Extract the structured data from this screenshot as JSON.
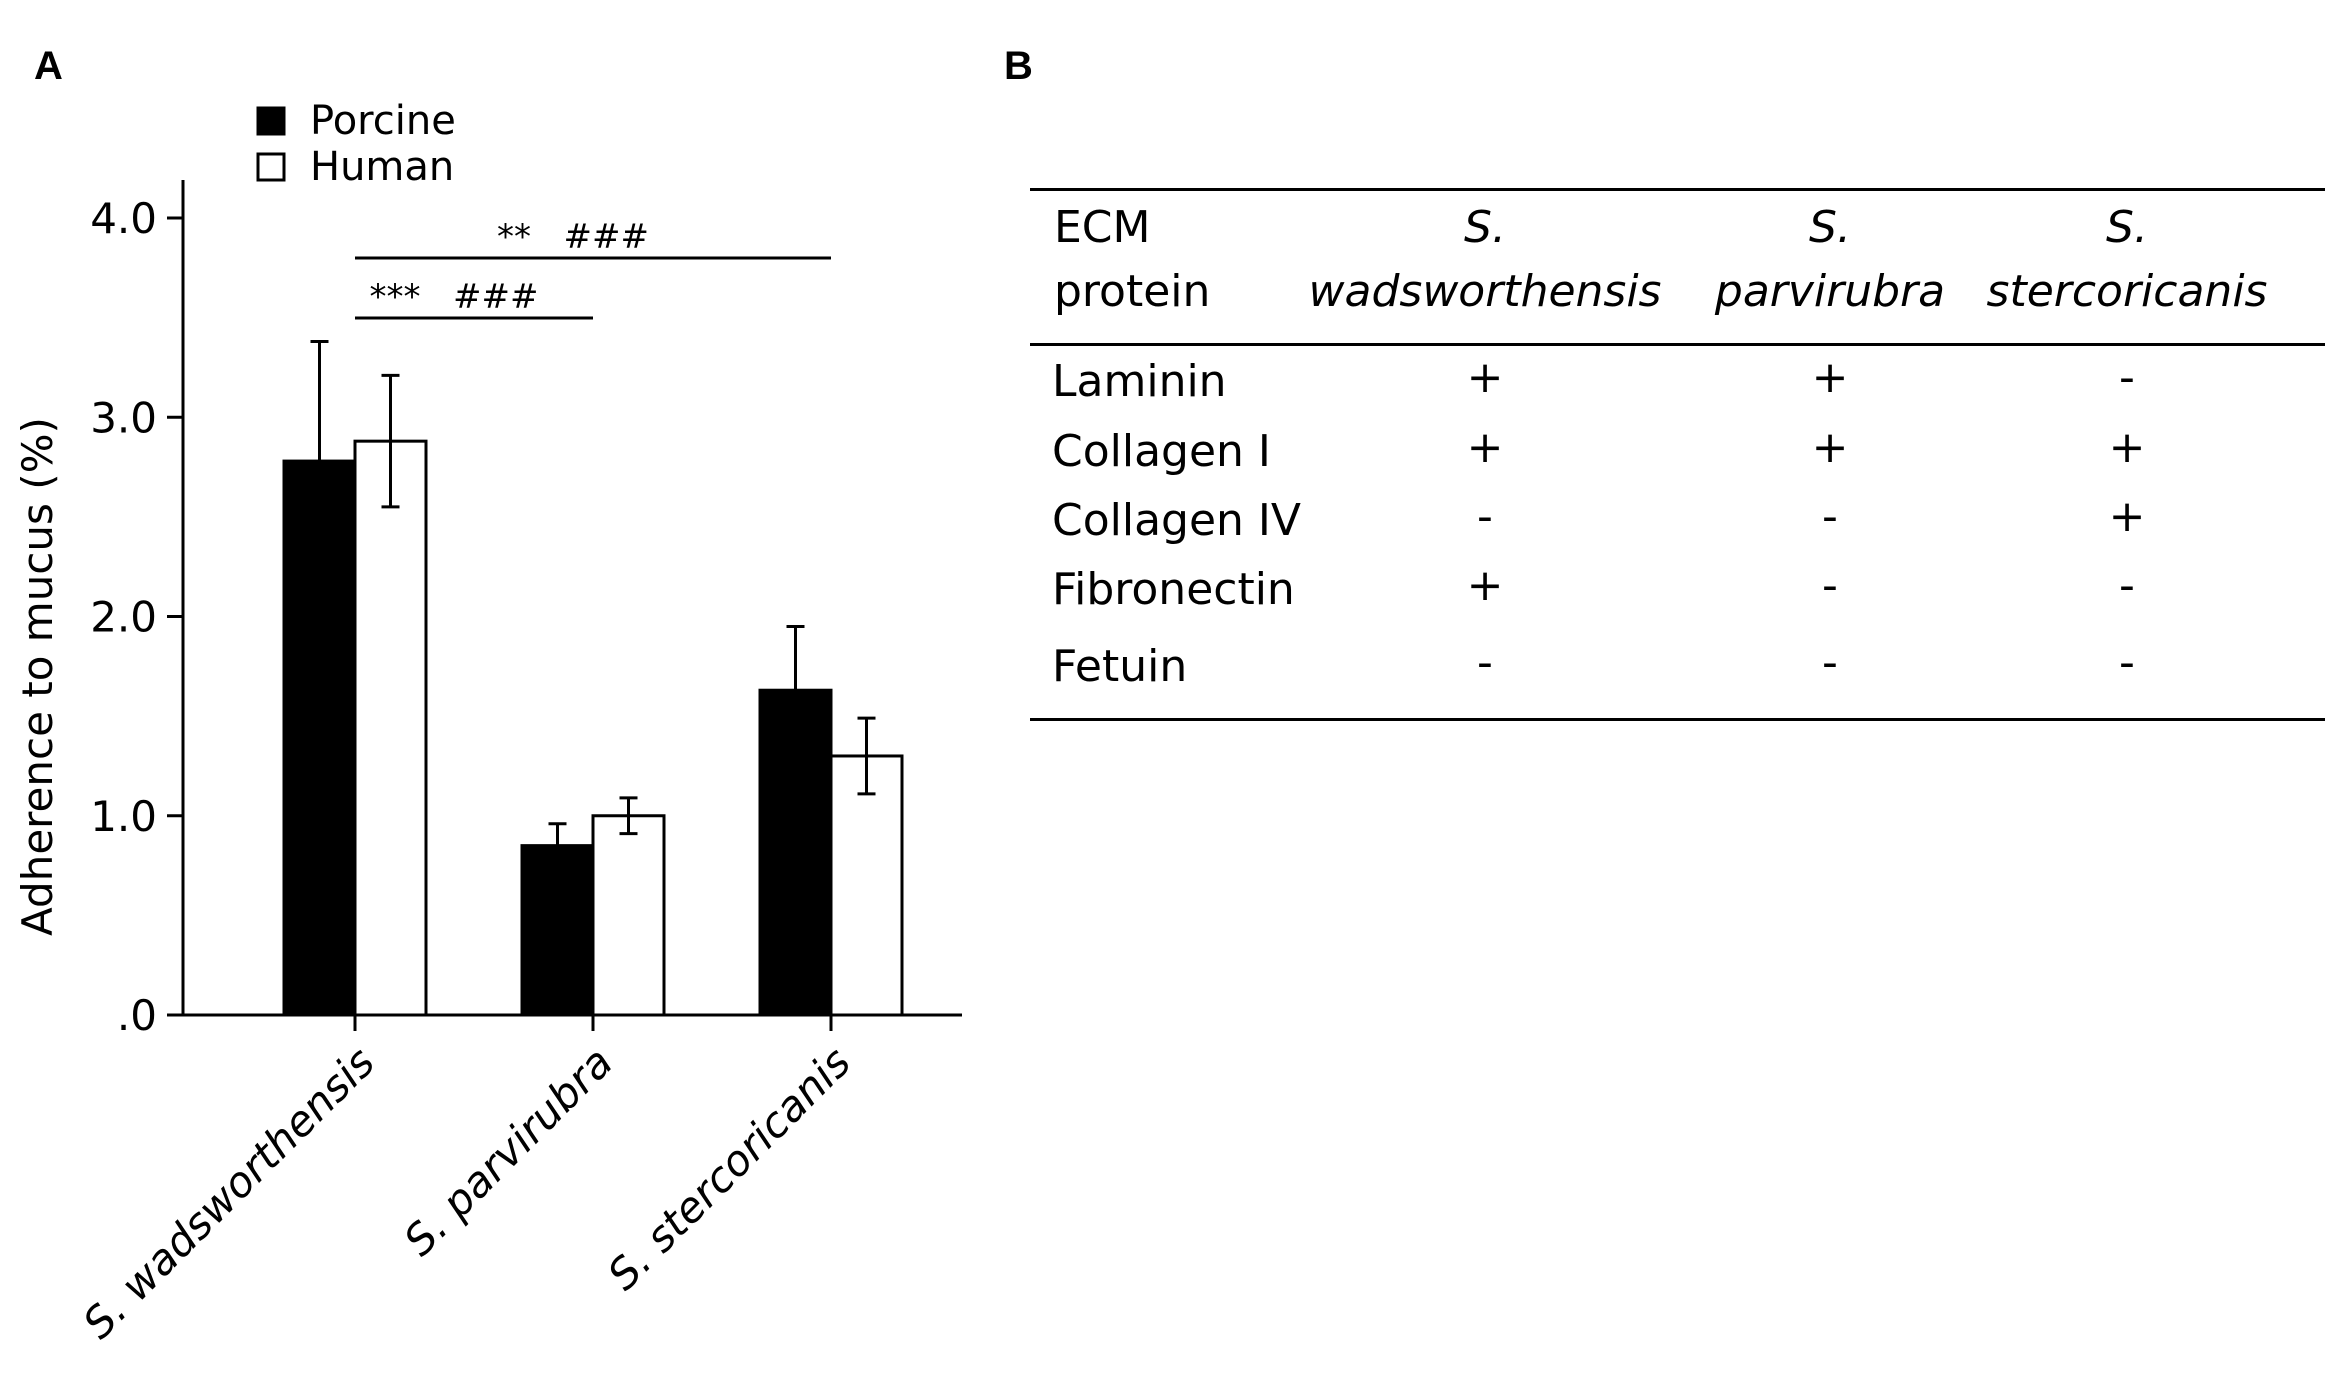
{
  "panels": {
    "a": "A",
    "b": "B"
  },
  "chart_data": {
    "type": "bar",
    "title": "",
    "xlabel": "",
    "ylabel": "Adherence to mucus (%)",
    "ylim": [
      0,
      4.0
    ],
    "yticks": [
      {
        "value": 0,
        "label": ".0"
      },
      {
        "value": 1.0,
        "label": "1.0"
      },
      {
        "value": 2.0,
        "label": "2.0"
      },
      {
        "value": 3.0,
        "label": "3.0"
      },
      {
        "value": 4.0,
        "label": "4.0"
      }
    ],
    "categories": [
      "S. wadsworthensis",
      "S. parvirubra",
      "S. stercoricanis"
    ],
    "series": [
      {
        "name": "Porcine",
        "color": "#000000",
        "values": [
          2.78,
          0.85,
          1.63
        ],
        "errors": [
          0.6,
          0.11,
          0.32
        ]
      },
      {
        "name": "Human",
        "color": "#ffffff",
        "values": [
          2.88,
          1.0,
          1.3
        ],
        "errors": [
          0.33,
          0.09,
          0.19
        ]
      }
    ],
    "legend": "top-left",
    "grid": false,
    "annotations": [
      {
        "from": 0,
        "to": 1,
        "text": "***   ###"
      },
      {
        "from": 0,
        "to": 2,
        "text": "**   ###"
      }
    ]
  },
  "table": {
    "headers": [
      {
        "line1": "ECM",
        "line2": "protein"
      },
      {
        "line1": "S.",
        "line2": "wadsworthensis"
      },
      {
        "line1": "S.",
        "line2": "parvirubra"
      },
      {
        "line1": "S.",
        "line2": "stercoricanis"
      }
    ],
    "rows": [
      {
        "protein": "Laminin",
        "values": [
          "+",
          "+",
          "-"
        ]
      },
      {
        "protein": "Collagen I",
        "values": [
          "+",
          "+",
          "+"
        ]
      },
      {
        "protein": "Collagen IV",
        "values": [
          "-",
          "-",
          "+"
        ]
      },
      {
        "protein": "Fibronectin",
        "values": [
          "+",
          "-",
          "-"
        ]
      },
      {
        "protein": "Fetuin",
        "values": [
          "-",
          "-",
          "-"
        ]
      }
    ]
  }
}
